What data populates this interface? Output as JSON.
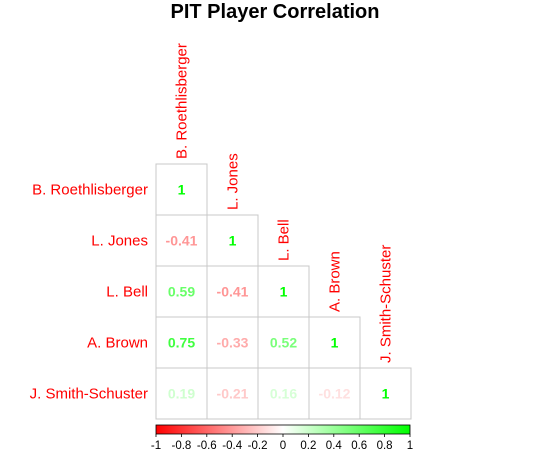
{
  "chart_data": {
    "type": "heatmap",
    "title": "PIT Player Correlation",
    "players": [
      "B. Roethlisberger",
      "L. Jones",
      "L. Bell",
      "A. Brown",
      "J. Smith-Schuster"
    ],
    "matrix": [
      [
        1,
        null,
        null,
        null,
        null
      ],
      [
        -0.41,
        1,
        null,
        null,
        null
      ],
      [
        0.59,
        -0.41,
        1,
        null,
        null
      ],
      [
        0.75,
        -0.33,
        0.52,
        1,
        null
      ],
      [
        0.19,
        -0.21,
        0.16,
        -0.12,
        1
      ]
    ],
    "value_labels": [
      [
        "1",
        "",
        "",
        "",
        ""
      ],
      [
        "-0.41",
        "1",
        "",
        "",
        ""
      ],
      [
        "0.59",
        "-0.41",
        "1",
        "",
        ""
      ],
      [
        "0.75",
        "-0.33",
        "0.52",
        "1",
        ""
      ],
      [
        "0.19",
        "-0.21",
        "0.16",
        "-0.12",
        "1"
      ]
    ],
    "colorbar": {
      "range": [
        -1,
        1
      ],
      "ticks": [
        -1,
        -0.8,
        -0.6,
        -0.4,
        -0.2,
        0,
        0.2,
        0.4,
        0.6,
        0.8,
        1
      ],
      "tick_labels": [
        "-1",
        "-0.8",
        "-0.6",
        "-0.4",
        "-0.2",
        "0",
        "0.2",
        "0.4",
        "0.6",
        "0.8",
        "1"
      ],
      "low_color": "#ff0000",
      "mid_color": "#ffffff",
      "high_color": "#00ff00"
    },
    "label_color": "#ff0000",
    "legend_position": "bottom",
    "grid": true
  }
}
